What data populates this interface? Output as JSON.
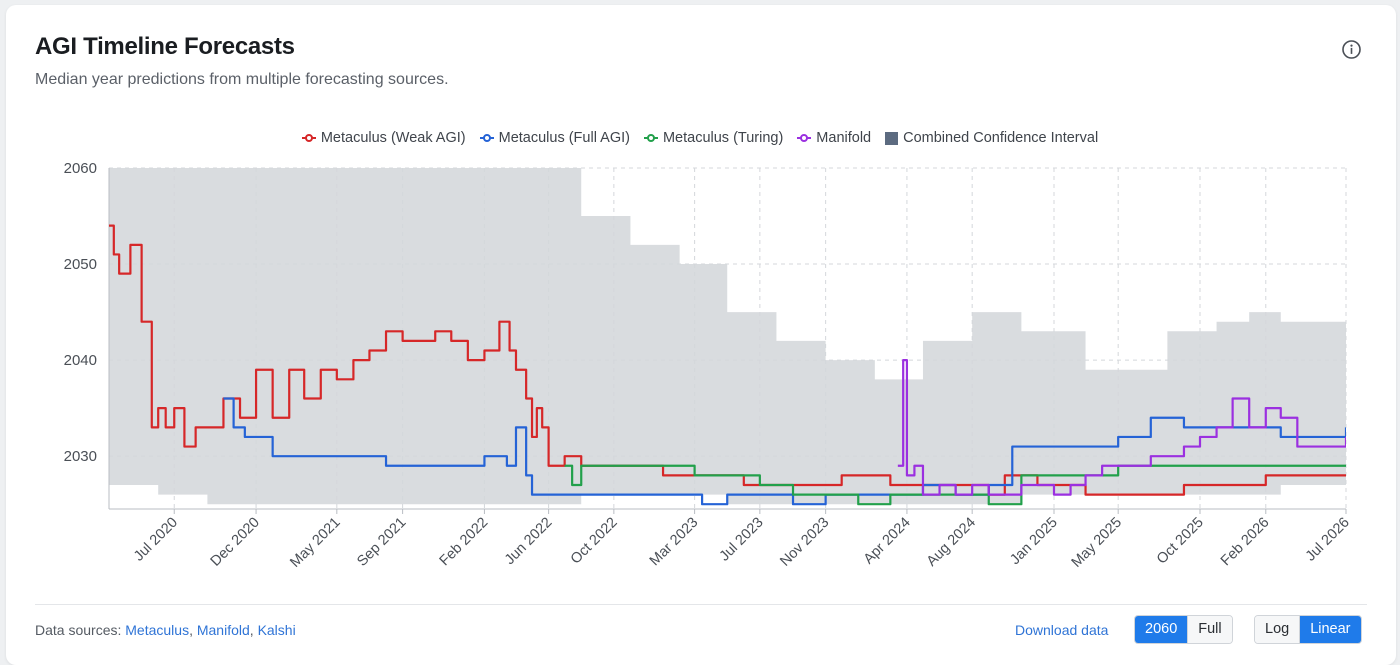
{
  "header": {
    "title": "AGI Timeline Forecasts",
    "subtitle": "Median year predictions from multiple forecasting sources."
  },
  "legend": [
    {
      "label": "Metaculus (Weak AGI)",
      "color": "#d62728",
      "kind": "line"
    },
    {
      "label": "Metaculus (Full AGI)",
      "color": "#2563d6",
      "kind": "line"
    },
    {
      "label": "Metaculus (Turing)",
      "color": "#22a04b",
      "kind": "line"
    },
    {
      "label": "Manifold",
      "color": "#9b30e0",
      "kind": "line"
    },
    {
      "label": "Combined Confidence Interval",
      "color": "#5c6b80",
      "kind": "box"
    }
  ],
  "footer": {
    "sources_prefix": "Data sources:",
    "sources": [
      "Metaculus",
      "Manifold",
      "Kalshi"
    ],
    "download_label": "Download data",
    "range_options": [
      "2060",
      "Full"
    ],
    "range_selected": "2060",
    "scale_options": [
      "Log",
      "Linear"
    ],
    "scale_selected": "Linear"
  },
  "colors": {
    "ci_band": "#d9dcdf",
    "grid": "#d4d7db",
    "axis_text": "#4a4f56"
  },
  "chart_data": {
    "type": "line",
    "x_range": [
      "2020-03-01",
      "2026-07-01"
    ],
    "ylim": [
      2024.5,
      2060
    ],
    "y_ticks": [
      2030,
      2040,
      2050,
      2060
    ],
    "x_ticks": [
      "Jul 2020",
      "Dec 2020",
      "May 2021",
      "Sep 2021",
      "Feb 2022",
      "Jun 2022",
      "Oct 2022",
      "Mar 2023",
      "Jul 2023",
      "Nov 2023",
      "Apr 2024",
      "Aug 2024",
      "Jan 2025",
      "May 2025",
      "Oct 2025",
      "Feb 2026",
      "Jul 2026"
    ],
    "x_tick_dates": [
      "2020-07-01",
      "2020-12-01",
      "2021-05-01",
      "2021-09-01",
      "2022-02-01",
      "2022-06-01",
      "2022-10-01",
      "2023-03-01",
      "2023-07-01",
      "2023-11-01",
      "2024-04-01",
      "2024-08-01",
      "2025-01-01",
      "2025-05-01",
      "2025-10-01",
      "2026-02-01",
      "2026-07-01"
    ],
    "grid": true,
    "legend_position": "top-center",
    "confidence_interval": {
      "name": "Combined Confidence Interval",
      "x": [
        "2020-03-01",
        "2020-06-01",
        "2020-09-01",
        "2021-01-01",
        "2021-06-01",
        "2021-10-01",
        "2022-02-01",
        "2022-04-01",
        "2022-05-15",
        "2022-08-01",
        "2022-11-01",
        "2023-02-01",
        "2023-05-01",
        "2023-08-01",
        "2023-11-01",
        "2024-02-01",
        "2024-05-01",
        "2024-08-01",
        "2024-11-01",
        "2025-02-01",
        "2025-03-01",
        "2025-05-01",
        "2025-08-01",
        "2025-11-01",
        "2026-01-01",
        "2026-03-01",
        "2026-07-01"
      ],
      "upper": [
        2060,
        2060,
        2060,
        2060,
        2060,
        2060,
        2060,
        2060,
        2060,
        2055,
        2052,
        2050,
        2045,
        2042,
        2040,
        2038,
        2042,
        2045,
        2043,
        2043,
        2039,
        2039,
        2043,
        2044,
        2045,
        2044,
        2043
      ],
      "lower": [
        2027,
        2026,
        2025,
        2025,
        2025,
        2025,
        2025,
        2025,
        2025,
        2026,
        2026,
        2026,
        2025,
        2025,
        2025,
        2025,
        2025,
        2025,
        2026,
        2026,
        2026,
        2026,
        2026,
        2026,
        2026,
        2027,
        2027
      ]
    },
    "series": [
      {
        "name": "Metaculus (Weak AGI)",
        "color": "#d62728",
        "x": [
          "2020-03-01",
          "2020-03-10",
          "2020-03-20",
          "2020-04-10",
          "2020-05-01",
          "2020-05-20",
          "2020-06-01",
          "2020-06-15",
          "2020-07-01",
          "2020-07-20",
          "2020-08-10",
          "2020-09-01",
          "2020-10-01",
          "2020-11-01",
          "2020-12-01",
          "2021-01-01",
          "2021-02-01",
          "2021-03-01",
          "2021-04-01",
          "2021-05-01",
          "2021-06-01",
          "2021-07-01",
          "2021-08-01",
          "2021-09-01",
          "2021-10-01",
          "2021-11-01",
          "2021-12-01",
          "2022-01-01",
          "2022-02-01",
          "2022-03-01",
          "2022-03-20",
          "2022-04-01",
          "2022-04-20",
          "2022-05-01",
          "2022-05-10",
          "2022-05-20",
          "2022-06-01",
          "2022-07-01",
          "2022-08-01",
          "2022-10-01",
          "2023-01-01",
          "2023-03-01",
          "2023-06-01",
          "2023-09-01",
          "2023-12-01",
          "2024-03-01",
          "2024-06-01",
          "2024-09-01",
          "2024-10-01",
          "2024-12-01",
          "2025-03-01",
          "2025-06-01",
          "2025-09-01",
          "2025-12-01",
          "2026-02-01",
          "2026-07-01"
        ],
        "values": [
          2054,
          2051,
          2049,
          2052,
          2044,
          2033,
          2035,
          2033,
          2035,
          2031,
          2033,
          2033,
          2036,
          2034,
          2039,
          2034,
          2039,
          2036,
          2039,
          2038,
          2040,
          2041,
          2043,
          2042,
          2042,
          2043,
          2042,
          2040,
          2041,
          2044,
          2041,
          2039,
          2036,
          2032,
          2035,
          2033,
          2029,
          2030,
          2029,
          2029,
          2028,
          2028,
          2027,
          2027,
          2028,
          2027,
          2027,
          2026,
          2028,
          2027,
          2026,
          2026,
          2027,
          2027,
          2028,
          2028
        ]
      },
      {
        "name": "Metaculus (Full AGI)",
        "color": "#2563d6",
        "x": [
          "2020-10-01",
          "2020-10-20",
          "2020-11-10",
          "2020-12-01",
          "2021-01-01",
          "2021-05-01",
          "2021-08-01",
          "2021-11-01",
          "2022-01-01",
          "2022-02-01",
          "2022-03-15",
          "2022-04-01",
          "2022-04-20",
          "2022-05-01",
          "2022-05-20",
          "2022-06-01",
          "2022-08-01",
          "2022-11-01",
          "2023-02-01",
          "2023-03-15",
          "2023-05-01",
          "2023-07-01",
          "2023-09-01",
          "2023-11-01",
          "2024-01-01",
          "2024-03-01",
          "2024-05-01",
          "2024-07-01",
          "2024-09-01",
          "2024-10-15",
          "2024-11-01",
          "2025-01-01",
          "2025-03-01",
          "2025-05-01",
          "2025-07-01",
          "2025-09-01",
          "2025-11-01",
          "2026-01-01",
          "2026-03-01",
          "2026-07-01"
        ],
        "values": [
          2036,
          2033,
          2032,
          2032,
          2030,
          2030,
          2029,
          2029,
          2029,
          2030,
          2029,
          2033,
          2028,
          2026,
          2026,
          2026,
          2026,
          2026,
          2026,
          2025,
          2026,
          2026,
          2025,
          2026,
          2026,
          2026,
          2027,
          2026,
          2027,
          2031,
          2031,
          2031,
          2031,
          2032,
          2034,
          2033,
          2033,
          2033,
          2032,
          2033
        ]
      },
      {
        "name": "Metaculus (Turing)",
        "color": "#22a04b",
        "x": [
          "2022-07-01",
          "2022-07-15",
          "2022-08-01",
          "2022-09-01",
          "2022-11-01",
          "2023-01-01",
          "2023-03-01",
          "2023-05-01",
          "2023-07-01",
          "2023-09-01",
          "2023-11-01",
          "2024-01-01",
          "2024-03-01",
          "2024-05-01",
          "2024-07-01",
          "2024-09-01",
          "2024-11-01",
          "2025-01-01",
          "2025-03-01",
          "2025-05-01",
          "2025-09-01",
          "2026-01-01",
          "2026-07-01"
        ],
        "values": [
          2029,
          2027,
          2029,
          2029,
          2029,
          2029,
          2028,
          2028,
          2027,
          2026,
          2026,
          2025,
          2026,
          2026,
          2026,
          2025,
          2028,
          2028,
          2028,
          2029,
          2029,
          2029,
          2029
        ]
      },
      {
        "name": "Manifold",
        "color": "#9b30e0",
        "x": [
          "2024-03-15",
          "2024-03-25",
          "2024-04-01",
          "2024-04-15",
          "2024-05-01",
          "2024-06-01",
          "2024-07-01",
          "2024-08-01",
          "2024-09-01",
          "2024-10-01",
          "2024-11-01",
          "2024-12-01",
          "2025-01-01",
          "2025-02-01",
          "2025-03-01",
          "2025-04-01",
          "2025-05-01",
          "2025-06-01",
          "2025-07-01",
          "2025-08-01",
          "2025-09-01",
          "2025-10-01",
          "2025-11-01",
          "2025-12-01",
          "2026-01-01",
          "2026-02-01",
          "2026-03-01",
          "2026-04-01",
          "2026-05-01",
          "2026-07-01"
        ],
        "values": [
          2029,
          2040,
          2028,
          2029,
          2026,
          2027,
          2026,
          2027,
          2026,
          2026,
          2027,
          2027,
          2026,
          2027,
          2028,
          2029,
          2029,
          2029,
          2030,
          2030,
          2031,
          2032,
          2033,
          2036,
          2033,
          2035,
          2034,
          2031,
          2031,
          2032
        ]
      }
    ]
  }
}
